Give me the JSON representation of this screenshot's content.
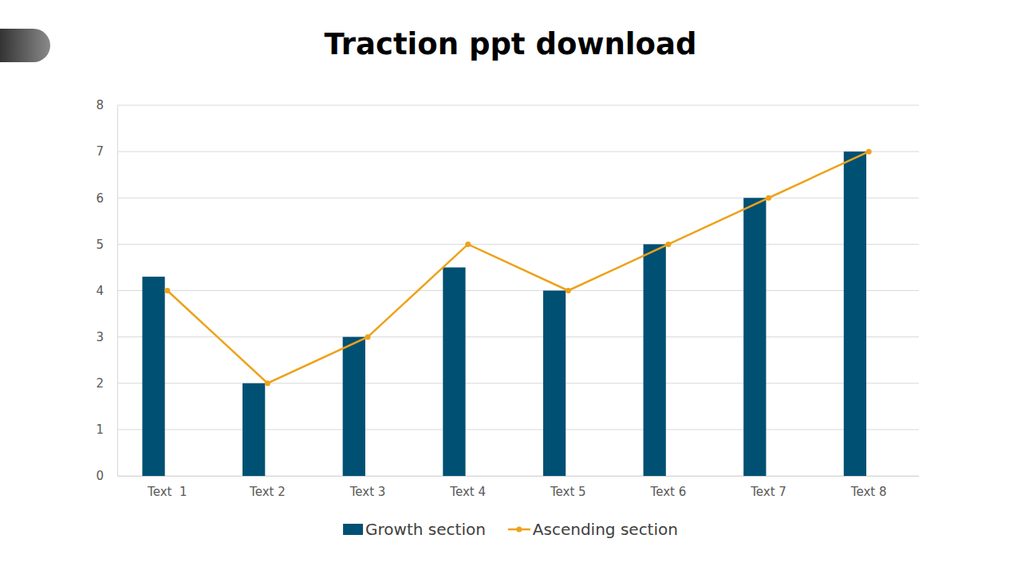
{
  "chart_data": {
    "type": "bar",
    "title": "Traction ppt download",
    "categories": [
      "Text  1",
      "Text 2",
      "Text 3",
      "Text 4",
      "Text 5",
      "Text 6",
      "Text 7",
      "Text 8"
    ],
    "series": [
      {
        "name": "Growth section",
        "type": "bar",
        "color": "#005073",
        "values": [
          4.3,
          2,
          3,
          4.5,
          4,
          5,
          6,
          7
        ]
      },
      {
        "name": "Ascending section",
        "type": "line",
        "color": "#eda21a",
        "marker": "circle",
        "values": [
          4,
          2,
          3,
          5,
          4,
          5,
          6,
          7
        ]
      }
    ],
    "ylim": [
      0,
      8
    ],
    "yticks": [
      0,
      1,
      2,
      3,
      4,
      5,
      6,
      7,
      8
    ],
    "grid": true,
    "legend": "bottom"
  }
}
